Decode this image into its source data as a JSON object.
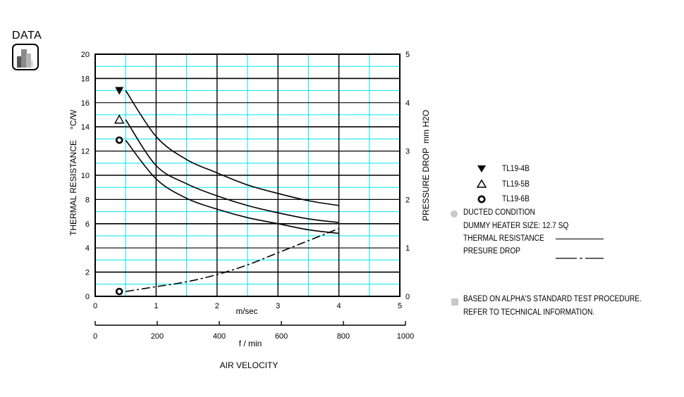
{
  "header": {
    "label": "DATA",
    "icon": "bar-chart-icon"
  },
  "chart_data": {
    "type": "line",
    "title": "",
    "xlabel": "AIR VELOCITY",
    "x_unit_primary": "m/sec",
    "x_unit_secondary": "f / min",
    "ylabel_left": "THERMAL RESISTANCE",
    "ylabel_left_unit": "°C/W",
    "ylabel_right": "PRESSURE DROP",
    "ylabel_right_unit": "mm H2O",
    "xlim": [
      0,
      5
    ],
    "ylim_left": [
      0,
      20
    ],
    "ylim_right": [
      0,
      5
    ],
    "x_ticks": [
      "0",
      "1",
      "2",
      "3",
      "4",
      "5"
    ],
    "x_secondary_ticks": [
      "0",
      "200",
      "400",
      "600",
      "800",
      "1000"
    ],
    "y_left_ticks": [
      "0",
      "2",
      "4",
      "6",
      "8",
      "10",
      "12",
      "14",
      "16",
      "18",
      "20"
    ],
    "y_right_ticks": [
      "0",
      "1",
      "2",
      "3",
      "4",
      "5"
    ],
    "grid": true,
    "x": [
      0.5,
      1.0,
      1.5,
      2.0,
      2.5,
      3.0,
      3.5,
      4.0
    ],
    "series": [
      {
        "name": "TL19-4B",
        "axis": "left",
        "style": "solid",
        "marker": "filled-down-triangle",
        "values": [
          17.0,
          13.2,
          11.3,
          10.2,
          9.2,
          8.5,
          7.9,
          7.5
        ]
      },
      {
        "name": "TL19-5B",
        "axis": "left",
        "style": "solid",
        "marker": "open-up-triangle",
        "values": [
          14.6,
          10.8,
          9.3,
          8.3,
          7.5,
          6.9,
          6.4,
          6.1
        ]
      },
      {
        "name": "TL19-6B",
        "axis": "left",
        "style": "solid",
        "marker": "open-circle",
        "values": [
          12.9,
          9.7,
          8.1,
          7.2,
          6.5,
          6.0,
          5.5,
          5.2
        ]
      },
      {
        "name": "Pressure Drop",
        "axis": "right",
        "style": "dash-dot",
        "marker": "open-circle",
        "values": [
          0.1,
          0.2,
          0.3,
          0.45,
          0.65,
          0.9,
          1.15,
          1.4
        ]
      }
    ],
    "legend_position": "right"
  },
  "legend": {
    "items": [
      {
        "marker": "filled-down-triangle",
        "label": "TL19-4B"
      },
      {
        "marker": "open-up-triangle",
        "label": "TL19-5B"
      },
      {
        "marker": "open-circle",
        "label": "TL19-6B"
      }
    ],
    "condition": "DUCTED CONDITION",
    "heater": "DUMMY HEATER SIZE: 12.7 SQ",
    "thermal_label": "THERMAL RESISTANCE",
    "pressure_label": "PRESURE DROP"
  },
  "notes": {
    "line1": "BASED ON ALPHA'S STANDARD TEST PROCEDURE.",
    "line2": "REFER TO TECHNICAL INFORMATION."
  },
  "colors": {
    "grid_major": "#000000",
    "grid_minor": "#00e5ee",
    "curve": "#000000"
  }
}
